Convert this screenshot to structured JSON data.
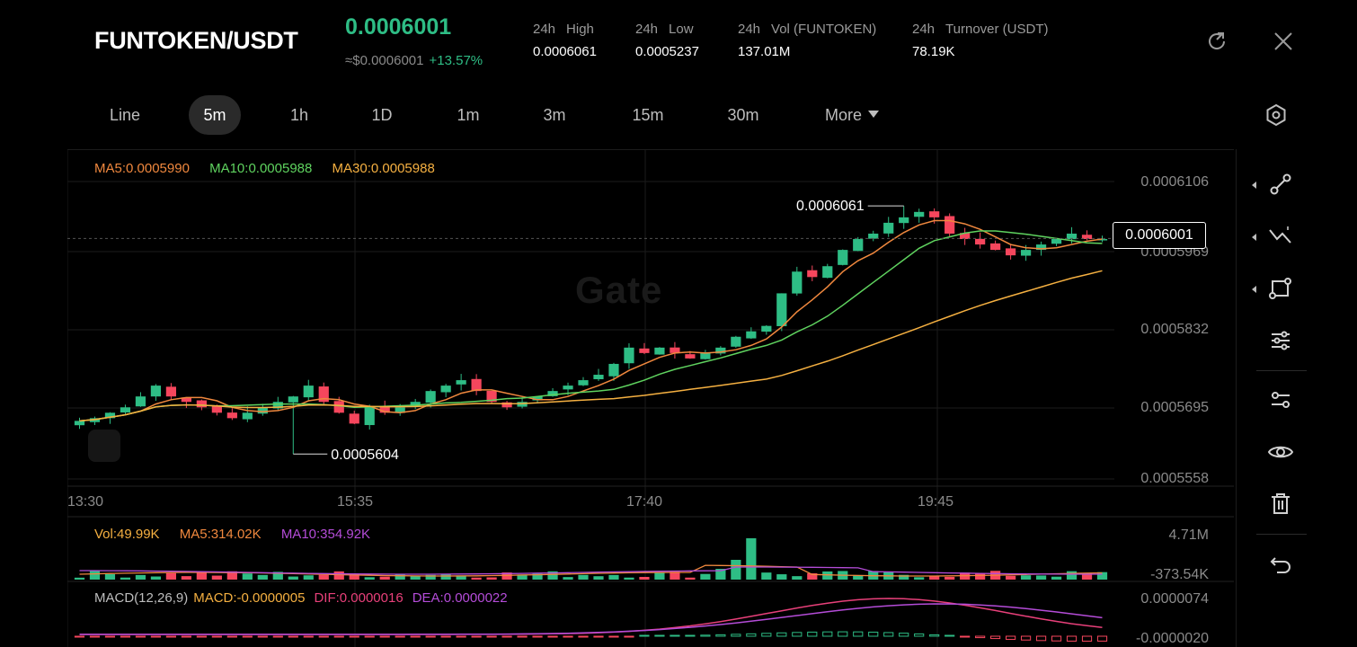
{
  "header": {
    "pair": "FUNTOKEN/USDT",
    "price": "0.0006001",
    "usd_price": "≈$0.0006001",
    "change": "+13.57%",
    "stats": [
      {
        "period": "24h",
        "label": "High",
        "value": "0.0006061"
      },
      {
        "period": "24h",
        "label": "Low",
        "value": "0.0005237"
      },
      {
        "period": "24h",
        "label": "Vol (FUNTOKEN)",
        "value": "137.01M"
      },
      {
        "period": "24h",
        "label": "Turnover (USDT)",
        "value": "78.19K"
      }
    ]
  },
  "tabs": [
    "Line",
    "5m",
    "1h",
    "1D",
    "1m",
    "3m",
    "15m",
    "30m",
    "More"
  ],
  "active_tab": "5m",
  "watermark": "Gate",
  "legend": {
    "ma5": "MA5:0.0005990",
    "ma10": "MA10:0.0005988",
    "ma30": "MA30:0.0005988",
    "vol": "Vol:49.99K",
    "vol_ma5": "MA5:314.02K",
    "vol_ma10": "MA10:354.92K",
    "macd_params": "MACD(12,26,9)",
    "macd": "MACD:-0.0000005",
    "dif": "DIF:0.0000016",
    "dea": "DEA:0.0000022"
  },
  "price_axis": [
    "0.0006106",
    "0.0005969",
    "0.0005832",
    "0.0005695",
    "0.0005558"
  ],
  "time_axis": [
    "13:30",
    "15:35",
    "17:40",
    "19:45"
  ],
  "vol_axis": [
    "4.71M",
    "-373.54K"
  ],
  "macd_axis": [
    "0.0000074",
    "-0.0000020"
  ],
  "annotations": {
    "high": "0.0006061",
    "low": "0.0005604",
    "current": "0.0006001"
  },
  "colors": {
    "up": "#2ebd85",
    "down": "#f6465d",
    "ma5": "#f0883e",
    "ma10": "#5fd35f",
    "ma30": "#f5b041",
    "vol_ma10": "#b44cd8",
    "dif": "#e8407a",
    "dea": "#b44cd8"
  },
  "icons": {
    "share": "share-icon",
    "close": "close-icon",
    "settings": "settings-icon",
    "tools": [
      "line-tool-icon",
      "trend-tool-icon",
      "shape-tool-icon",
      "indicator-settings-icon",
      "indicator-manage-icon",
      "eye-icon",
      "trash-icon",
      "undo-icon"
    ]
  },
  "chart_data": {
    "type": "candlestick",
    "interval": "5m",
    "price_range": [
      0.0005558,
      0.0006106
    ],
    "x_ticks": [
      "13:30",
      "15:35",
      "17:40",
      "19:45"
    ],
    "highest": 0.0006061,
    "lowest": 0.0005604,
    "last": 0.0006001,
    "close_series": [
      0.0005665,
      0.000567,
      0.000568,
      0.000569,
      0.000571,
      0.000573,
      0.000571,
      0.00057,
      0.000569,
      0.000568,
      0.000567,
      0.000568,
      0.000569,
      0.00057,
      0.000571,
      0.000573,
      0.00057,
      0.000568,
      0.000566,
      0.000569,
      0.000568,
      0.000569,
      0.00057,
      0.000572,
      0.000573,
      0.000574,
      0.000572,
      0.00057,
      0.000569,
      0.00057,
      0.000571,
      0.000572,
      0.000573,
      0.000574,
      0.000575,
      0.000577,
      0.00058,
      0.000579,
      0.00058,
      0.000579,
      0.000578,
      0.000579,
      0.00058,
      0.000582,
      0.000583,
      0.000584,
      0.00059,
      0.000594,
      0.000593,
      0.000595,
      0.000598,
      0.0006,
      0.000601,
      0.000603,
      0.000604,
      0.000605,
      0.000604,
      0.000601,
      0.0006,
      0.000599,
      0.000598,
      0.000597,
      0.000598,
      0.000599,
      0.0006,
      0.000601,
      0.0006,
      0.0006
    ],
    "volume": {
      "range": [
        -373540,
        4710000
      ]
    },
    "macd": {
      "range": [
        -2e-06,
        7.4e-06
      ]
    }
  }
}
